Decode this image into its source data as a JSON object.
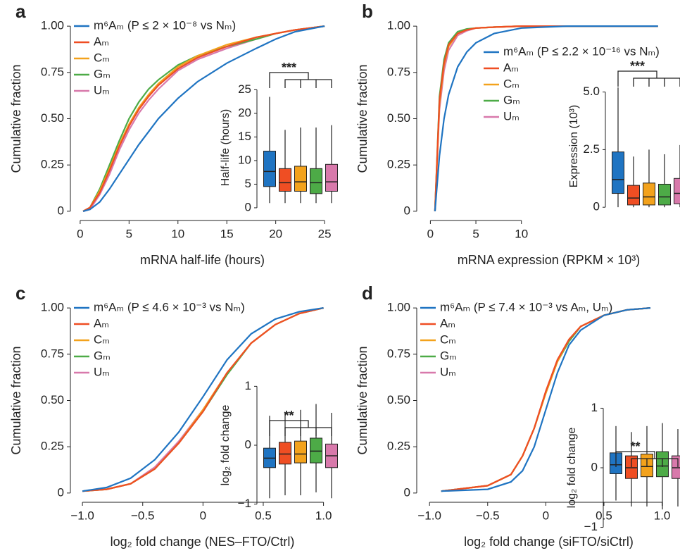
{
  "chart_data": [
    {
      "type": "line",
      "panel": "a",
      "xlabel": "mRNA half-life (hours)",
      "ylabel": "Cumulative fraction",
      "xlim": [
        -1,
        26
      ],
      "ylim": [
        -0.05,
        1.05
      ],
      "xticks": [
        0,
        5,
        10,
        15,
        20,
        25
      ],
      "yticks": [
        0,
        0.25,
        {
          "value": 0.5,
          "label": "0.50"
        },
        0.75,
        {
          "value": 1,
          "label": "1.00"
        }
      ],
      "legend": "upper-left",
      "series": [
        {
          "name": "m⁶Aₘ (P ≤ 2 × 10⁻⁸ vs Nₘ)",
          "color": "#1f74c2",
          "x": [
            0.3,
            1,
            2,
            3,
            4,
            5,
            6,
            7,
            8,
            10,
            12,
            15,
            18,
            20,
            22,
            25
          ],
          "values": [
            0,
            0.01,
            0.05,
            0.12,
            0.2,
            0.28,
            0.36,
            0.43,
            0.5,
            0.61,
            0.7,
            0.8,
            0.88,
            0.93,
            0.97,
            1
          ]
        },
        {
          "name": "Aₘ",
          "color": "#ef4e23",
          "x": [
            0.3,
            1,
            2,
            3,
            4,
            5,
            6,
            7,
            8,
            10,
            12,
            15,
            18,
            20,
            22,
            25
          ],
          "values": [
            0,
            0.02,
            0.1,
            0.22,
            0.35,
            0.46,
            0.55,
            0.62,
            0.68,
            0.77,
            0.83,
            0.89,
            0.94,
            0.96,
            0.98,
            1
          ]
        },
        {
          "name": "Cₘ",
          "color": "#f3a21c",
          "x": [
            0.3,
            1,
            2,
            3,
            4,
            5,
            6,
            7,
            8,
            10,
            12,
            15,
            18,
            20,
            22,
            25
          ],
          "values": [
            0,
            0.02,
            0.11,
            0.23,
            0.36,
            0.47,
            0.56,
            0.63,
            0.69,
            0.78,
            0.84,
            0.9,
            0.94,
            0.96,
            0.98,
            1
          ]
        },
        {
          "name": "Gₘ",
          "color": "#4dab47",
          "x": [
            0.3,
            1,
            2,
            3,
            4,
            5,
            6,
            7,
            8,
            10,
            12,
            15,
            18,
            20,
            22,
            25
          ],
          "values": [
            0,
            0.02,
            0.12,
            0.25,
            0.38,
            0.5,
            0.59,
            0.66,
            0.71,
            0.79,
            0.84,
            0.89,
            0.93,
            0.96,
            0.98,
            1
          ]
        },
        {
          "name": "Uₘ",
          "color": "#d879ab",
          "x": [
            0.3,
            1,
            2,
            3,
            4,
            5,
            6,
            7,
            8,
            10,
            12,
            15,
            18,
            20,
            22,
            25
          ],
          "values": [
            0,
            0.01,
            0.09,
            0.2,
            0.33,
            0.44,
            0.53,
            0.6,
            0.66,
            0.76,
            0.82,
            0.88,
            0.93,
            0.96,
            0.98,
            1
          ]
        }
      ],
      "inset": {
        "type": "box",
        "ylabel": "Half-life (hours)",
        "ylim": [
          -1.5,
          27
        ],
        "yticks": [
          0,
          5,
          10,
          15,
          20,
          25
        ],
        "annotation": "***",
        "boxes": [
          [
            1,
            4.5,
            7.7,
            12,
            23.5
          ],
          [
            1,
            3.5,
            5.3,
            8.3,
            16.5
          ],
          [
            1,
            3.5,
            5.5,
            8.8,
            17
          ],
          [
            1,
            3,
            5.3,
            8.3,
            17
          ],
          [
            1,
            3.5,
            5.5,
            9.2,
            17.5
          ]
        ]
      }
    },
    {
      "type": "line",
      "panel": "b",
      "xlabel": "mRNA expression (RPKM × 10³)",
      "ylabel": "Cumulative fraction",
      "xlim": [
        -1.5,
        27.5
      ],
      "ylim": [
        -0.05,
        1.05
      ],
      "xticks": [
        0,
        5,
        10
      ],
      "yticks": [
        0,
        0.25,
        {
          "value": 0.5,
          "label": "0.50"
        },
        0.75,
        {
          "value": 1,
          "label": "1.00"
        }
      ],
      "legend": "center-right",
      "series": [
        {
          "name": "m⁶Aₘ (P ≤ 2.2 × 10⁻¹⁶ vs Nₘ)",
          "color": "#1f74c2",
          "x": [
            0.5,
            1,
            1.5,
            2,
            3,
            4,
            5,
            7,
            10,
            15,
            25
          ],
          "values": [
            0,
            0.3,
            0.5,
            0.63,
            0.78,
            0.86,
            0.91,
            0.96,
            0.99,
            1,
            1
          ]
        },
        {
          "name": "Aₘ",
          "color": "#ef4e23",
          "x": [
            0.5,
            1,
            1.5,
            2,
            3,
            4,
            5,
            7,
            10,
            15,
            25
          ],
          "values": [
            0,
            0.6,
            0.8,
            0.9,
            0.96,
            0.98,
            0.99,
            0.995,
            1,
            1,
            1
          ]
        },
        {
          "name": "Cₘ",
          "color": "#f3a21c",
          "x": [
            0.5,
            1,
            1.5,
            2,
            3,
            4,
            5,
            7,
            10,
            15,
            25
          ],
          "values": [
            0,
            0.58,
            0.79,
            0.89,
            0.96,
            0.98,
            0.99,
            0.995,
            1,
            1,
            1
          ]
        },
        {
          "name": "Gₘ",
          "color": "#4dab47",
          "x": [
            0.5,
            1,
            1.5,
            2,
            3,
            4,
            5,
            7,
            10,
            15,
            25
          ],
          "values": [
            0,
            0.62,
            0.82,
            0.91,
            0.97,
            0.985,
            0.99,
            0.995,
            1,
            1,
            1
          ]
        },
        {
          "name": "Uₘ",
          "color": "#d879ab",
          "x": [
            0.5,
            1,
            1.5,
            2,
            3,
            4,
            5,
            7,
            10,
            15,
            25
          ],
          "values": [
            0,
            0.55,
            0.76,
            0.87,
            0.95,
            0.975,
            0.99,
            0.995,
            1,
            1,
            1
          ]
        }
      ],
      "inset": {
        "type": "box",
        "ylabel": "Expression (10³)",
        "ylim": [
          -0.3,
          5.6
        ],
        "yticks": [
          0,
          {
            "value": 2.5,
            "label": "2.5"
          },
          {
            "value": 5,
            "label": "5.0"
          }
        ],
        "annotation": "***",
        "boxes": [
          [
            0,
            0.6,
            1.2,
            2.4,
            5.2
          ],
          [
            0,
            0.1,
            0.4,
            0.95,
            2.2
          ],
          [
            0,
            0.1,
            0.45,
            1.05,
            2.5
          ],
          [
            0,
            0.1,
            0.45,
            1,
            2.3
          ],
          [
            0,
            0.15,
            0.6,
            1.25,
            2.7
          ]
        ]
      }
    },
    {
      "type": "line",
      "panel": "c",
      "xlabel": "log₂ fold change (NES–FTO/Ctrl)",
      "ylabel": "Cumulative fraction",
      "xlim": [
        -1.1,
        1.09
      ],
      "ylim": [
        -0.05,
        1.05
      ],
      "xticks": [
        {
          "value": -1,
          "label": "−1.0"
        },
        {
          "value": -0.5,
          "label": "−0.5"
        },
        0,
        0.5,
        {
          "value": 1,
          "label": "1.0"
        }
      ],
      "yticks": [
        0,
        0.25,
        {
          "value": 0.5,
          "label": "0.50"
        },
        0.75,
        {
          "value": 1,
          "label": "1.00"
        }
      ],
      "legend": "upper-left",
      "series": [
        {
          "name": "m⁶Aₘ (P ≤ 4.6 × 10⁻³ vs Nₘ)",
          "color": "#1f74c2",
          "x": [
            -1,
            -0.8,
            -0.6,
            -0.4,
            -0.2,
            0,
            0.2,
            0.4,
            0.6,
            0.8,
            1
          ],
          "values": [
            0.01,
            0.03,
            0.08,
            0.18,
            0.33,
            0.52,
            0.72,
            0.86,
            0.94,
            0.98,
            1
          ]
        },
        {
          "name": "Aₘ",
          "color": "#ef4e23",
          "x": [
            -1,
            -0.8,
            -0.6,
            -0.4,
            -0.2,
            0,
            0.2,
            0.4,
            0.6,
            0.8,
            1
          ],
          "values": [
            0.01,
            0.02,
            0.05,
            0.13,
            0.27,
            0.44,
            0.65,
            0.81,
            0.91,
            0.97,
            1
          ]
        },
        {
          "name": "Cₘ",
          "color": "#f3a21c",
          "x": [
            -1,
            -0.8,
            -0.6,
            -0.4,
            -0.2,
            0,
            0.2,
            0.4,
            0.6,
            0.8,
            1
          ],
          "values": [
            0.01,
            0.02,
            0.05,
            0.13,
            0.27,
            0.45,
            0.65,
            0.81,
            0.91,
            0.97,
            1
          ]
        },
        {
          "name": "Gₘ",
          "color": "#4dab47",
          "x": [
            -1,
            -0.8,
            -0.6,
            -0.4,
            -0.2,
            0,
            0.2,
            0.4,
            0.6,
            0.8,
            1
          ],
          "values": [
            0.01,
            0.02,
            0.05,
            0.13,
            0.27,
            0.44,
            0.64,
            0.81,
            0.91,
            0.97,
            1
          ]
        },
        {
          "name": "Uₘ",
          "color": "#d879ab",
          "x": [
            -1,
            -0.8,
            -0.6,
            -0.4,
            -0.2,
            0,
            0.2,
            0.4,
            0.6,
            0.8,
            1
          ],
          "values": [
            0.01,
            0.02,
            0.05,
            0.14,
            0.28,
            0.45,
            0.65,
            0.81,
            0.91,
            0.97,
            1
          ]
        }
      ],
      "inset": {
        "type": "box",
        "ylabel": "log₂ fold change",
        "ylim": [
          -1.1,
          1.1
        ],
        "yticks": [
          {
            "value": -1,
            "label": "−1"
          },
          0,
          1
        ],
        "annotation": "**",
        "boxes": [
          [
            -0.9,
            -0.38,
            -0.22,
            -0.05,
            0.5
          ],
          [
            -0.85,
            -0.32,
            -0.15,
            0.05,
            0.55
          ],
          [
            -0.85,
            -0.3,
            -0.15,
            0.07,
            0.6
          ],
          [
            -0.8,
            -0.3,
            -0.1,
            0.12,
            0.7
          ],
          [
            -0.9,
            -0.38,
            -0.18,
            0.02,
            0.55
          ]
        ]
      }
    },
    {
      "type": "line",
      "panel": "d",
      "xlabel": "log₂ fold change (siFTO/siCtrl)",
      "ylabel": "Cumulative fraction",
      "xlim": [
        -1.11,
        1.16
      ],
      "ylim": [
        -0.05,
        1.05
      ],
      "xticks": [
        {
          "value": -1,
          "label": "−1.0"
        },
        {
          "value": -0.5,
          "label": "−0.5"
        },
        0,
        0.5,
        {
          "value": 1,
          "label": "1.0"
        }
      ],
      "yticks": [
        0,
        0.25,
        {
          "value": 0.5,
          "label": "0.50"
        },
        0.75,
        {
          "value": 1,
          "label": "1.00"
        }
      ],
      "legend": "upper-left",
      "series": [
        {
          "name": "m⁶Aₘ (P ≤ 7.4 × 10⁻³ vs Aₘ, Uₘ)",
          "color": "#1f74c2",
          "x": [
            -0.9,
            -0.5,
            -0.3,
            -0.2,
            -0.1,
            0,
            0.1,
            0.2,
            0.3,
            0.5,
            0.7,
            0.9
          ],
          "values": [
            0.01,
            0.02,
            0.06,
            0.12,
            0.25,
            0.45,
            0.65,
            0.8,
            0.88,
            0.96,
            0.99,
            1
          ]
        },
        {
          "name": "Aₘ",
          "color": "#ef4e23",
          "x": [
            -0.9,
            -0.5,
            -0.3,
            -0.2,
            -0.1,
            0,
            0.1,
            0.2,
            0.3,
            0.5,
            0.7,
            0.9
          ],
          "values": [
            0.01,
            0.04,
            0.1,
            0.2,
            0.35,
            0.55,
            0.72,
            0.83,
            0.9,
            0.96,
            0.99,
            1
          ]
        },
        {
          "name": "Cₘ",
          "color": "#f3a21c",
          "x": [
            -0.9,
            -0.5,
            -0.3,
            -0.2,
            -0.1,
            0,
            0.1,
            0.2,
            0.3,
            0.5,
            0.7,
            0.9
          ],
          "values": [
            0.01,
            0.04,
            0.1,
            0.2,
            0.35,
            0.54,
            0.71,
            0.83,
            0.9,
            0.96,
            0.99,
            1
          ]
        },
        {
          "name": "Gₘ",
          "color": "#4dab47",
          "x": [
            -0.9,
            -0.5,
            -0.3,
            -0.2,
            -0.1,
            0,
            0.1,
            0.2,
            0.3,
            0.5,
            0.7,
            0.9
          ],
          "values": [
            0.01,
            0.04,
            0.1,
            0.2,
            0.35,
            0.54,
            0.71,
            0.82,
            0.9,
            0.96,
            0.99,
            1
          ]
        },
        {
          "name": "Uₘ",
          "color": "#d879ab",
          "x": [
            -0.9,
            -0.5,
            -0.3,
            -0.2,
            -0.1,
            0,
            0.1,
            0.2,
            0.3,
            0.5,
            0.7,
            0.9
          ],
          "values": [
            0.01,
            0.04,
            0.1,
            0.2,
            0.35,
            0.55,
            0.72,
            0.83,
            0.9,
            0.96,
            0.99,
            1
          ]
        }
      ],
      "inset": {
        "type": "box",
        "ylabel": "log₂ fold change",
        "ylim": [
          -1.1,
          1.1
        ],
        "yticks": [
          {
            "value": -1,
            "label": "−1"
          },
          0,
          1
        ],
        "annotation": "**",
        "boxes": [
          [
            -0.55,
            -0.1,
            0.05,
            0.25,
            0.7
          ],
          [
            -0.65,
            -0.18,
            0,
            0.2,
            0.6
          ],
          [
            -0.65,
            -0.15,
            0.02,
            0.23,
            0.7
          ],
          [
            -0.7,
            -0.15,
            0.03,
            0.27,
            0.75
          ],
          [
            -0.65,
            -0.18,
            0,
            0.2,
            0.65
          ]
        ]
      }
    }
  ]
}
